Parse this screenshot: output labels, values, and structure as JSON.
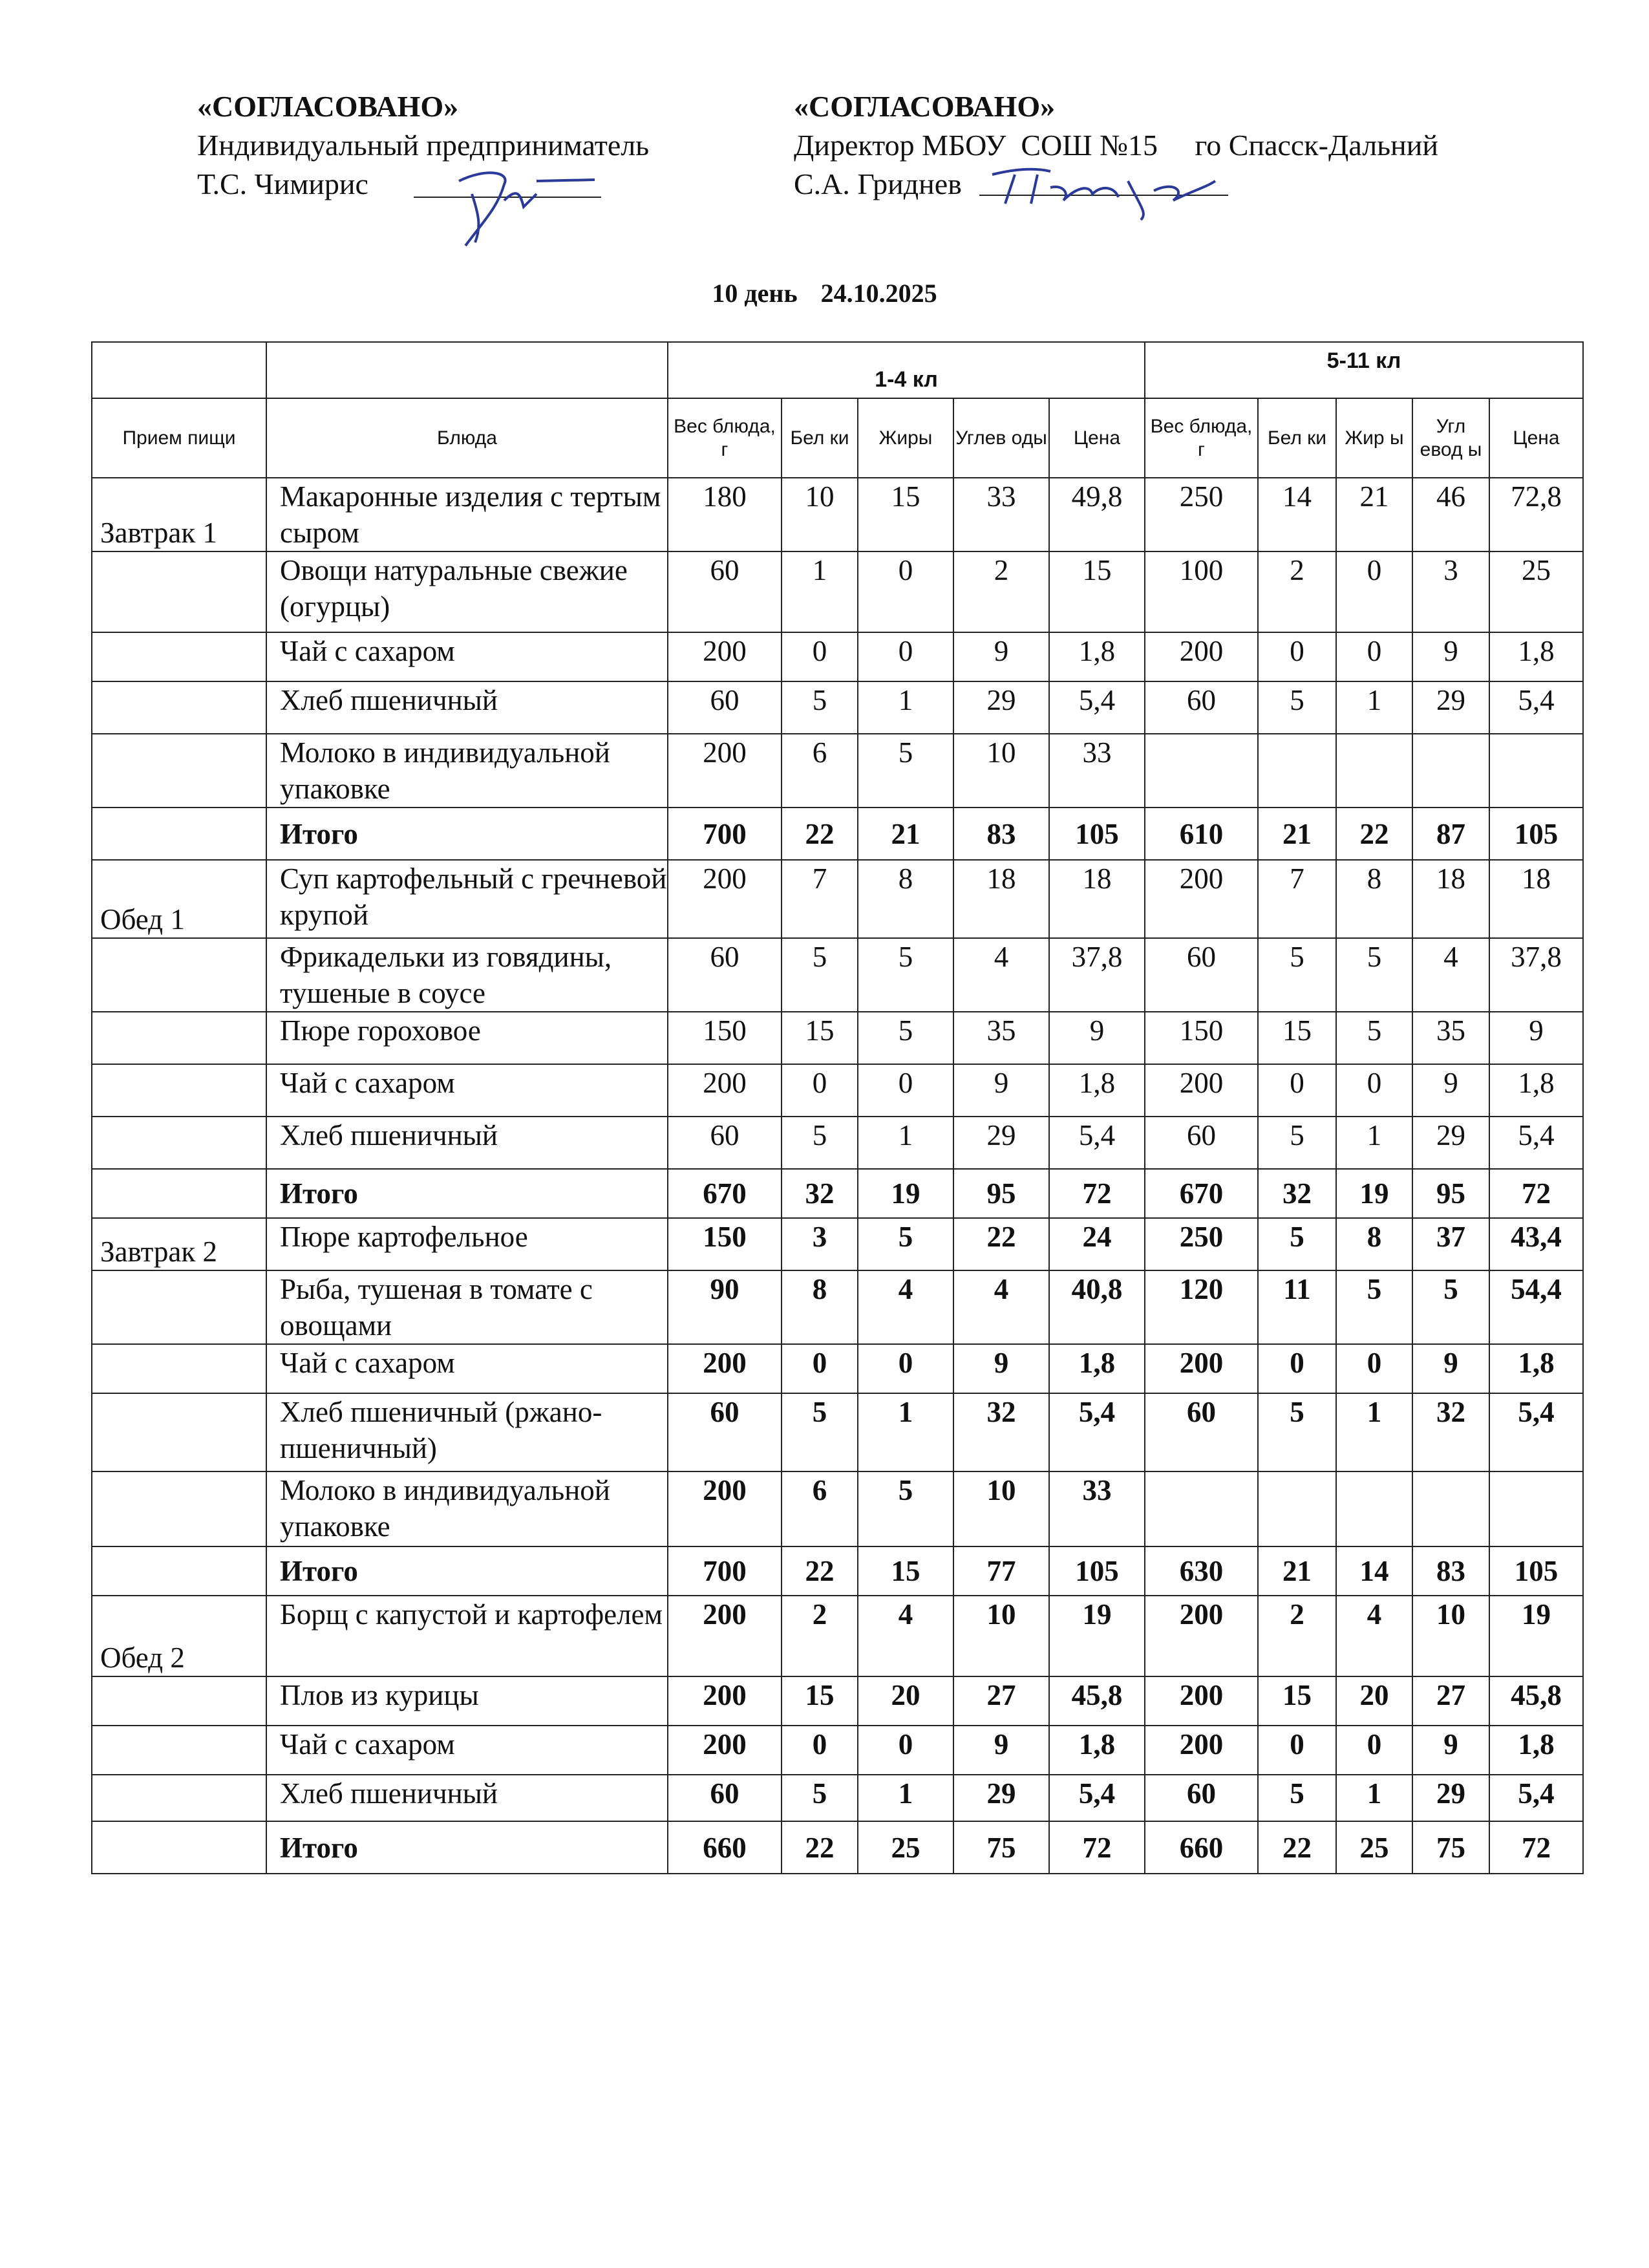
{
  "approval_left": {
    "title": "«СОГЛАСОВАНО»",
    "line1": "Индивидуальный предприниматель",
    "line2": "Т.С. Чимирис"
  },
  "approval_right": {
    "title": "«СОГЛАСОВАНО»",
    "line1": "Директор МБОУ  СОШ №15     го Спасск-Дальний",
    "line2": "С.А. Гриднев"
  },
  "day_label": "10 день",
  "date": "24.10.2025",
  "table": {
    "group_1_4": "1-4 кл",
    "group_5_11": "5-11 кл",
    "headers": [
      "Прием пищи",
      "Блюда",
      "Вес блюда, г",
      "Бел ки",
      "Жиры",
      "Углев оды",
      "Цена",
      "Вес блюда, г",
      "Бел ки",
      "Жир ы",
      "Угл евод ы",
      "Цена"
    ],
    "rows": [
      {
        "meal": "Завтрак 1",
        "dish": "Макаронные изделия с тертым сыром",
        "v": [
          "180",
          "10",
          "15",
          "33",
          "49,8",
          "250",
          "14",
          "21",
          "46",
          "72,8"
        ]
      },
      {
        "meal": "",
        "dish": "Овощи натуральные свежие (огурцы)",
        "v": [
          "60",
          "1",
          "0",
          "2",
          "15",
          "100",
          "2",
          "0",
          "3",
          "25"
        ]
      },
      {
        "meal": "",
        "dish": "Чай с сахаром",
        "v": [
          "200",
          "0",
          "0",
          "9",
          "1,8",
          "200",
          "0",
          "0",
          "9",
          "1,8"
        ]
      },
      {
        "meal": "",
        "dish": "Хлеб пшеничный",
        "v": [
          "60",
          "5",
          "1",
          "29",
          "5,4",
          "60",
          "5",
          "1",
          "29",
          "5,4"
        ]
      },
      {
        "meal": "",
        "dish": "Молоко в индивидуальной упаковке",
        "v": [
          "200",
          "6",
          "5",
          "10",
          "33",
          "",
          "",
          "",
          "",
          ""
        ]
      },
      {
        "meal": "",
        "dish": "Итого",
        "total": true,
        "v": [
          "700",
          "22",
          "21",
          "83",
          "105",
          "610",
          "21",
          "22",
          "87",
          "105"
        ]
      },
      {
        "meal": "Обед 1",
        "dish": "Суп картофельный с гречневой крупой",
        "v": [
          "200",
          "7",
          "8",
          "18",
          "18",
          "200",
          "7",
          "8",
          "18",
          "18"
        ]
      },
      {
        "meal": "",
        "dish": "Фрикадельки из говядины, тушеные в соусе",
        "v": [
          "60",
          "5",
          "5",
          "4",
          "37,8",
          "60",
          "5",
          "5",
          "4",
          "37,8"
        ]
      },
      {
        "meal": "",
        "dish": "Пюре гороховое",
        "v": [
          "150",
          "15",
          "5",
          "35",
          "9",
          "150",
          "15",
          "5",
          "35",
          "9"
        ]
      },
      {
        "meal": "",
        "dish": "Чай с сахаром",
        "v": [
          "200",
          "0",
          "0",
          "9",
          "1,8",
          "200",
          "0",
          "0",
          "9",
          "1,8"
        ]
      },
      {
        "meal": "",
        "dish": "Хлеб пшеничный",
        "v": [
          "60",
          "5",
          "1",
          "29",
          "5,4",
          "60",
          "5",
          "1",
          "29",
          "5,4"
        ]
      },
      {
        "meal": "",
        "dish": "Итого",
        "total": true,
        "v": [
          "670",
          "32",
          "19",
          "95",
          "72",
          "670",
          "32",
          "19",
          "95",
          "72"
        ]
      },
      {
        "meal": "Завтрак 2",
        "dish": "Пюре картофельное",
        "bold": true,
        "v": [
          "150",
          "3",
          "5",
          "22",
          "24",
          "250",
          "5",
          "8",
          "37",
          "43,4"
        ]
      },
      {
        "meal": "",
        "dish": "Рыба, тушеная в томате с овощами",
        "bold": true,
        "v": [
          "90",
          "8",
          "4",
          "4",
          "40,8",
          "120",
          "11",
          "5",
          "5",
          "54,4"
        ]
      },
      {
        "meal": "",
        "dish": "Чай с сахаром",
        "bold": true,
        "v": [
          "200",
          "0",
          "0",
          "9",
          "1,8",
          "200",
          "0",
          "0",
          "9",
          "1,8"
        ]
      },
      {
        "meal": "",
        "dish": "Хлеб пшеничный (ржано-пшеничный)",
        "bold": true,
        "v": [
          "60",
          "5",
          "1",
          "32",
          "5,4",
          "60",
          "5",
          "1",
          "32",
          "5,4"
        ]
      },
      {
        "meal": "",
        "dish": "Молоко в индивидуальной упаковке",
        "bold": true,
        "v": [
          "200",
          "6",
          "5",
          "10",
          "33",
          "",
          "",
          "",
          "",
          ""
        ]
      },
      {
        "meal": "",
        "dish": "Итого",
        "total": true,
        "v": [
          "700",
          "22",
          "15",
          "77",
          "105",
          "630",
          "21",
          "14",
          "83",
          "105"
        ]
      },
      {
        "meal": "Обед 2",
        "dish": "Борщ с капустой и картофелем",
        "bold": true,
        "v": [
          "200",
          "2",
          "4",
          "10",
          "19",
          "200",
          "2",
          "4",
          "10",
          "19"
        ]
      },
      {
        "meal": "",
        "dish": "Плов из курицы",
        "bold": true,
        "v": [
          "200",
          "15",
          "20",
          "27",
          "45,8",
          "200",
          "15",
          "20",
          "27",
          "45,8"
        ]
      },
      {
        "meal": "",
        "dish": "Чай с сахаром",
        "bold": true,
        "v": [
          "200",
          "0",
          "0",
          "9",
          "1,8",
          "200",
          "0",
          "0",
          "9",
          "1,8"
        ]
      },
      {
        "meal": "",
        "dish": "Хлеб пшеничный",
        "bold": true,
        "v": [
          "60",
          "5",
          "1",
          "29",
          "5,4",
          "60",
          "5",
          "1",
          "29",
          "5,4"
        ]
      },
      {
        "meal": "",
        "dish": "Итого",
        "total": true,
        "v": [
          "660",
          "22",
          "25",
          "75",
          "72",
          "660",
          "22",
          "25",
          "75",
          "72"
        ]
      }
    ]
  }
}
